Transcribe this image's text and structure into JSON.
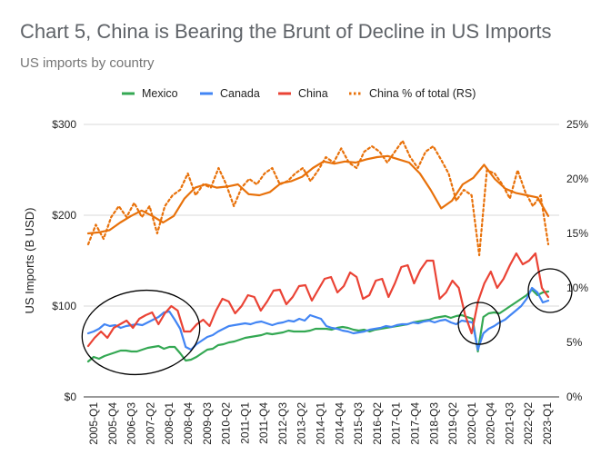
{
  "chart_data": {
    "type": "line",
    "title": "Chart 5, China is Bearing the Brunt of Decline in US Imports",
    "subtitle": "US imports by country",
    "ylabel": "US Imports (B USD)",
    "ylim": [
      0,
      300
    ],
    "y2lim": [
      0,
      25
    ],
    "y_ticks": [
      "$0",
      "$100",
      "$200",
      "$300"
    ],
    "y2_ticks": [
      "0%",
      "5%",
      "10%",
      "15%",
      "20%",
      "25%"
    ],
    "x_tick_labels": [
      "2005-Q1",
      "2005-Q4",
      "2006-Q3",
      "2007-Q2",
      "2008-Q1",
      "2008-Q4",
      "2009-Q3",
      "2010-Q2",
      "2011-Q1",
      "2011-Q4",
      "2012-Q3",
      "2013-Q2",
      "2014-Q1",
      "2014-Q4",
      "2015-Q3",
      "2016-Q2",
      "2017-Q1",
      "2017-Q4",
      "2018-Q3",
      "2019-Q2",
      "2020-Q1",
      "2020-Q4",
      "2021-Q3",
      "2022-Q2",
      "2023-Q1"
    ],
    "grid": true,
    "legend_position": "top",
    "series": [
      {
        "name": "Mexico",
        "axis": "left",
        "style": "solid",
        "color": "#34a853",
        "values": [
          39,
          44,
          42,
          45,
          47,
          49,
          51,
          51,
          50,
          50,
          52,
          54,
          55,
          56,
          53,
          55,
          55,
          48,
          40,
          41,
          44,
          48,
          52,
          53,
          57,
          58,
          60,
          61,
          63,
          65,
          66,
          67,
          68,
          70,
          69,
          70,
          71,
          73,
          72,
          72,
          72,
          73,
          75,
          75,
          75,
          74,
          76,
          77,
          76,
          74,
          73,
          74,
          72,
          74,
          75,
          76,
          77,
          78,
          79,
          80,
          82,
          83,
          84,
          85,
          87,
          88,
          89,
          87,
          89,
          90,
          88,
          86,
          50,
          88,
          92,
          93,
          92,
          96,
          100,
          104,
          108,
          112,
          118,
          112,
          115,
          116
        ]
      },
      {
        "name": "Canada",
        "axis": "left",
        "style": "solid",
        "color": "#4285f4",
        "values": [
          70,
          72,
          75,
          80,
          78,
          79,
          76,
          78,
          79,
          80,
          79,
          82,
          85,
          88,
          93,
          94,
          85,
          75,
          55,
          52,
          58,
          62,
          66,
          68,
          72,
          75,
          78,
          79,
          80,
          81,
          80,
          82,
          83,
          81,
          79,
          81,
          82,
          84,
          83,
          86,
          84,
          90,
          88,
          86,
          78,
          76,
          75,
          73,
          72,
          70,
          71,
          72,
          74,
          75,
          76,
          78,
          77,
          79,
          80,
          80,
          82,
          81,
          83,
          84,
          82,
          84,
          85,
          82,
          80,
          84,
          83,
          82,
          52,
          70,
          75,
          78,
          82,
          85,
          90,
          95,
          100,
          108,
          120,
          115,
          104,
          106
        ]
      },
      {
        "name": "China",
        "axis": "left",
        "style": "solid",
        "color": "#ea4335",
        "values": [
          56,
          65,
          72,
          65,
          76,
          80,
          84,
          76,
          86,
          90,
          93,
          80,
          92,
          100,
          95,
          72,
          72,
          80,
          85,
          78,
          95,
          108,
          105,
          92,
          100,
          112,
          110,
          95,
          105,
          117,
          118,
          102,
          110,
          122,
          123,
          106,
          118,
          130,
          132,
          115,
          122,
          137,
          132,
          108,
          112,
          128,
          130,
          110,
          125,
          143,
          145,
          125,
          140,
          150,
          150,
          108,
          115,
          128,
          120,
          90,
          70,
          105,
          125,
          138,
          120,
          130,
          145,
          158,
          146,
          150,
          158,
          120,
          110
        ]
      },
      {
        "name": "China % of total (RS)",
        "axis": "right",
        "style": "dotted",
        "color": "#e8710a",
        "values": [
          14,
          15.8,
          14.5,
          16.5,
          17.5,
          16.5,
          17.8,
          16.5,
          17.5,
          15,
          17.5,
          18.5,
          19,
          20.5,
          18.5,
          19.5,
          19.2,
          21,
          19.5,
          17.5,
          19.2,
          20,
          19.5,
          20.5,
          21,
          19.5,
          19.8,
          20.5,
          21,
          19.8,
          20.8,
          22,
          21.5,
          22.8,
          21.5,
          21,
          22.5,
          23,
          22.5,
          21.5,
          22.5,
          23.5,
          22,
          21,
          22.5,
          23,
          21.8,
          20.5,
          18,
          19,
          18.5,
          13,
          20.8,
          20.5,
          19.5,
          18.2,
          20.8,
          18.8,
          17.5,
          18.5,
          14
        ]
      },
      {
        "name": "China % of total (RS)",
        "axis": "right",
        "style": "solid",
        "color": "#e8710a",
        "values": [
          15,
          15.1,
          15.3,
          16,
          16.6,
          17.1,
          16.6,
          16,
          16.6,
          18.2,
          19.2,
          19.5,
          19.2,
          19.3,
          19.5,
          18.6,
          18.5,
          18.8,
          19.6,
          19.8,
          20.2,
          21,
          21.6,
          21.4,
          21.6,
          21.5,
          21.8,
          22,
          22.1,
          21.8,
          21.5,
          20.5,
          19,
          17.3,
          18,
          19.5,
          20.1,
          21.3,
          20,
          19.1,
          18.7,
          18.5,
          18.3,
          16.6
        ]
      }
    ]
  },
  "legend": [
    {
      "label": "Mexico",
      "color": "#34a853",
      "style": "solid"
    },
    {
      "label": "Canada",
      "color": "#4285f4",
      "style": "solid"
    },
    {
      "label": "China",
      "color": "#ea4335",
      "style": "solid"
    },
    {
      "label": "China % of total (RS)",
      "color": "#e8710a",
      "style": "dotted"
    }
  ],
  "annotations": [
    {
      "shape": "ellipse",
      "region": "2005-2008 (Mexico, Canada, China)"
    },
    {
      "shape": "circle",
      "region": "2020-Q1 dip"
    },
    {
      "shape": "circle",
      "region": "2022-2023 end of series"
    }
  ]
}
